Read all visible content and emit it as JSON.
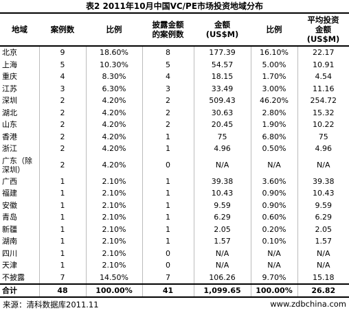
{
  "title": "表2 2011年10月中国VC/PE市场投资地域分布",
  "table": {
    "header": [
      [
        "地域"
      ],
      [
        "案例数"
      ],
      [
        "比例"
      ],
      [
        "披露金额",
        "的案例数"
      ],
      [
        "金额",
        "(US$M)"
      ],
      [
        "比例"
      ],
      [
        "平均投资",
        "金额",
        "(US$M)"
      ]
    ],
    "rows": [
      [
        "北京",
        "9",
        "18.60%",
        "8",
        "177.39",
        "16.10%",
        "22.17"
      ],
      [
        "上海",
        "5",
        "10.30%",
        "5",
        "54.57",
        "5.00%",
        "10.91"
      ],
      [
        "重庆",
        "4",
        "8.30%",
        "4",
        "18.15",
        "1.70%",
        "4.54"
      ],
      [
        "江苏",
        "3",
        "6.30%",
        "3",
        "33.49",
        "3.00%",
        "11.16"
      ],
      [
        "深圳",
        "2",
        "4.20%",
        "2",
        "509.43",
        "46.20%",
        "254.72"
      ],
      [
        "湖北",
        "2",
        "4.20%",
        "2",
        "30.63",
        "2.80%",
        "15.32"
      ],
      [
        "山东",
        "2",
        "4.20%",
        "2",
        "20.45",
        "1.90%",
        "10.22"
      ],
      [
        "香港",
        "2",
        "4.20%",
        "1",
        "75",
        "6.80%",
        "75"
      ],
      [
        "浙江",
        "2",
        "4.20%",
        "1",
        "4.96",
        "0.50%",
        "4.96"
      ],
      [
        "广东（除深圳）",
        "2",
        "4.20%",
        "0",
        "N/A",
        "N/A",
        "N/A"
      ],
      [
        "广西",
        "1",
        "2.10%",
        "1",
        "39.38",
        "3.60%",
        "39.38"
      ],
      [
        "福建",
        "1",
        "2.10%",
        "1",
        "10.43",
        "0.90%",
        "10.43"
      ],
      [
        "安徽",
        "1",
        "2.10%",
        "1",
        "9.59",
        "0.90%",
        "9.59"
      ],
      [
        "青岛",
        "1",
        "2.10%",
        "1",
        "6.29",
        "0.60%",
        "6.29"
      ],
      [
        "新疆",
        "1",
        "2.10%",
        "1",
        "2.05",
        "0.20%",
        "2.05"
      ],
      [
        "湖南",
        "1",
        "2.10%",
        "1",
        "1.57",
        "0.10%",
        "1.57"
      ],
      [
        "四川",
        "1",
        "2.10%",
        "0",
        "N/A",
        "N/A",
        "N/A"
      ],
      [
        "天津",
        "1",
        "2.10%",
        "0",
        "N/A",
        "N/A",
        "N/A"
      ],
      [
        "不披露",
        "7",
        "14.50%",
        "7",
        "106.26",
        "9.70%",
        "15.18"
      ]
    ],
    "total": [
      "合计",
      "48",
      "100.00%",
      "41",
      "1,099.65",
      "100.00%",
      "26.82"
    ]
  },
  "footer": {
    "source": "来源：清科数据库2011.11",
    "site": "www.zdbchina.com"
  }
}
